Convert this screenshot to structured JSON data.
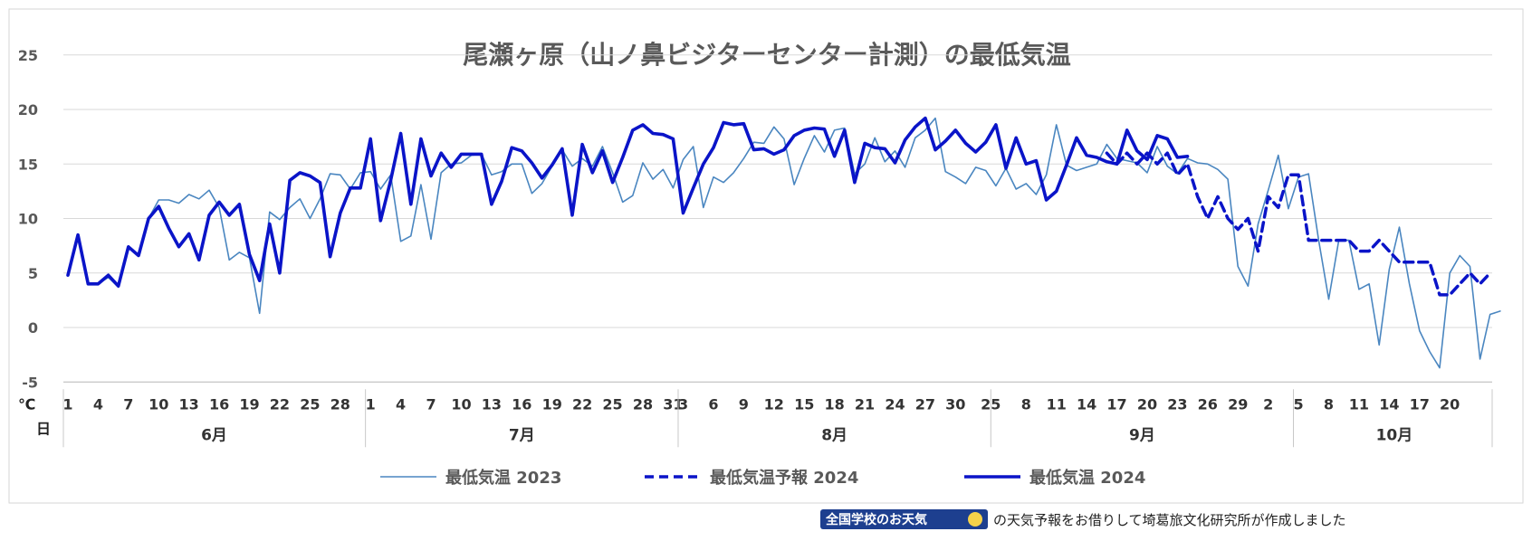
{
  "chart_data": {
    "type": "line",
    "title": "尾瀬ヶ原（山ノ鼻ビジターセンター計測）の最低気温",
    "y_unit": "℃",
    "x_unit": "日",
    "ylim": [
      -5,
      25
    ],
    "yticks": [
      "25",
      "20",
      "15",
      "10",
      "5",
      "0",
      "-5"
    ],
    "grid": true,
    "legend_position": "bottom",
    "months": [
      {
        "label": "6月",
        "days": 30
      },
      {
        "label": "7月",
        "days": 31
      },
      {
        "label": "8月",
        "days": 31
      },
      {
        "label": "9月",
        "days": 30
      },
      {
        "label": "10月",
        "days": 20
      }
    ],
    "day_ticks": [
      "1",
      "4",
      "7",
      "10",
      "13",
      "16",
      "19",
      "22",
      "25",
      "28",
      "1",
      "4",
      "7",
      "10",
      "13",
      "16",
      "19",
      "22",
      "25",
      "28",
      "31",
      "3",
      "6",
      "9",
      "12",
      "15",
      "18",
      "21",
      "24",
      "27",
      "30",
      "2",
      "5",
      "8",
      "11",
      "14",
      "17",
      "20",
      "23",
      "26",
      "29",
      "2",
      "5",
      "8",
      "11",
      "14",
      "17",
      "20"
    ],
    "series": [
      {
        "name": "最低気温 2023",
        "color": "#4a86c0",
        "style": "thin",
        "start_index": 0,
        "values": [
          4.8,
          8.5,
          4,
          4,
          4.6,
          3.7,
          7.3,
          6.6,
          10,
          11.7,
          11.7,
          11.4,
          12.2,
          11.8,
          12.6,
          11,
          6.2,
          6.9,
          6.4,
          1.3,
          10.6,
          9.9,
          11,
          11.8,
          10,
          11.8,
          14.1,
          14,
          12.7,
          14.2,
          14.3,
          12.7,
          14,
          7.9,
          8.4,
          13.1,
          8.1,
          14.2,
          15,
          15.1,
          15.8,
          15.9,
          14,
          14.3,
          15,
          15,
          12.3,
          13.2,
          14.8,
          16.3,
          14.8,
          15.5,
          14.8,
          16.6,
          14.2,
          11.5,
          12.1,
          15.1,
          13.6,
          14.5,
          12.8,
          15.4,
          16.6,
          11,
          13.8,
          13.3,
          14.2,
          15.5,
          17,
          16.9,
          18.4,
          17.3,
          13.1,
          15.5,
          17.6,
          16.1,
          18.1,
          18.3,
          14.1,
          15,
          17.4,
          15.2,
          16.2,
          14.7,
          17.4,
          18.1,
          19.2,
          14.3,
          13.8,
          13.2,
          14.7,
          14.4,
          13,
          14.6,
          12.7,
          13.2,
          12.2,
          14,
          18.6,
          14.9,
          14.4,
          14.7,
          15,
          16.8,
          15.5,
          15.3,
          15.1,
          14.2,
          16.6,
          14.8,
          14.1,
          15.5,
          15.1,
          15,
          14.5,
          13.6,
          5.6,
          3.8,
          9.5,
          12.6,
          15.8,
          10.9,
          13.8,
          14.1,
          8,
          2.6,
          8,
          8,
          3.5,
          4,
          -1.6,
          5.3,
          9.2,
          4,
          -0.3,
          -2.2,
          -3.7,
          5,
          6.6,
          5.6,
          -2.9,
          1.2,
          1.5
        ]
      },
      {
        "name": "最低気温予報 2024",
        "color": "#0a14c8",
        "style": "dashed",
        "start_index": 103,
        "values": [
          16,
          15,
          16,
          15,
          16,
          15,
          16,
          14,
          15,
          12,
          10,
          12,
          10,
          9,
          10,
          7,
          12,
          11,
          14,
          14,
          8,
          8,
          8,
          8,
          8,
          7,
          7,
          8,
          7,
          6,
          6,
          6,
          6,
          3,
          3,
          4,
          5,
          4,
          5
        ]
      },
      {
        "name": "最低気温 2024",
        "color": "#0a14c8",
        "style": "thick",
        "start_index": 0,
        "values": [
          4.8,
          8.5,
          4,
          4,
          4.8,
          3.8,
          7.4,
          6.6,
          10,
          11.1,
          9.1,
          7.4,
          8.6,
          6.2,
          10.3,
          11.5,
          10.3,
          11.3,
          6.7,
          4.3,
          9.5,
          5,
          13.5,
          14.2,
          13.9,
          13.3,
          6.5,
          10.5,
          12.8,
          12.8,
          17.3,
          9.8,
          13.5,
          17.8,
          11.3,
          17.3,
          13.9,
          16,
          14.7,
          15.9,
          15.9,
          15.9,
          11.3,
          13.4,
          16.5,
          16.2,
          15.1,
          13.7,
          14.9,
          16.4,
          10.3,
          16.8,
          14.2,
          16.2,
          13.3,
          15.6,
          18.1,
          18.6,
          17.8,
          17.7,
          17.3,
          10.5,
          12.8,
          15,
          16.5,
          18.8,
          18.6,
          18.7,
          16.3,
          16.4,
          15.9,
          16.3,
          17.6,
          18.1,
          18.3,
          18.2,
          15.7,
          18.1,
          13.3,
          16.9,
          16.5,
          16.4,
          15.1,
          17.2,
          18.4,
          19.2,
          16.3,
          17.1,
          18.1,
          16.9,
          16.1,
          17,
          18.6,
          14.6,
          17.4,
          15,
          15.3,
          11.7,
          12.5,
          14.9,
          17.4,
          15.8,
          15.6,
          15.2,
          15,
          18.1,
          16.2,
          15.4,
          17.6,
          17.3,
          15.6,
          15.7
        ]
      }
    ]
  },
  "credit": {
    "badge_text": "全国学校のお天気",
    "text": "の天気予報をお借りして埼葛旅文化研究所が作成しました"
  }
}
